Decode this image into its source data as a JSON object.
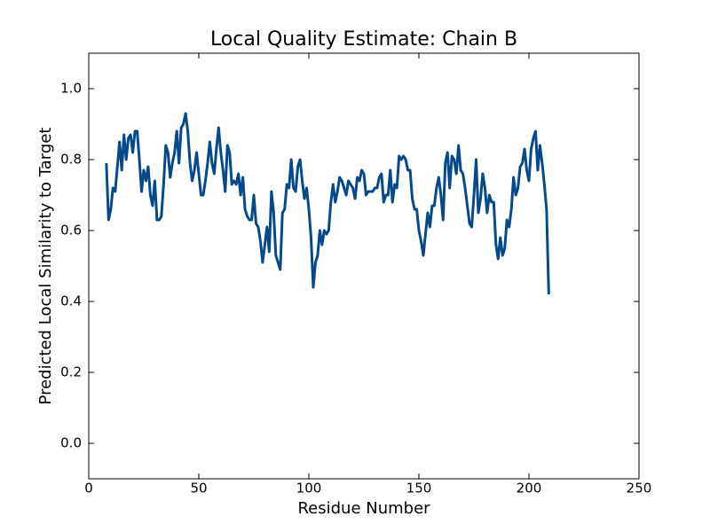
{
  "chart_data": {
    "type": "line",
    "title": "Local Quality Estimate: Chain B",
    "x_label": "Residue Number",
    "y_label": "Predicted Local Similarity to Target",
    "xlim": [
      0,
      250
    ],
    "ylim": [
      -0.1,
      1.1
    ],
    "xticks": [
      0,
      50,
      100,
      150,
      200,
      250
    ],
    "yticks": [
      {
        "value": 0,
        "label": "0.0"
      },
      0.2,
      0.4,
      0.6,
      0.8,
      {
        "value": 1,
        "label": "1.0"
      }
    ],
    "grid": false,
    "series": [
      {
        "color": "#044a8a",
        "x": [
          8,
          9,
          10,
          11,
          12,
          13,
          14,
          15,
          16,
          17,
          18,
          19,
          20,
          21,
          22,
          23,
          24,
          25,
          26,
          27,
          28,
          29,
          30,
          31,
          32,
          33,
          34,
          35,
          36,
          37,
          38,
          39,
          40,
          41,
          42,
          43,
          44,
          45,
          46,
          47,
          48,
          49,
          50,
          51,
          52,
          53,
          54,
          55,
          56,
          57,
          58,
          59,
          60,
          61,
          62,
          63,
          64,
          65,
          66,
          67,
          68,
          69,
          70,
          71,
          72,
          73,
          74,
          75,
          76,
          77,
          78,
          79,
          80,
          81,
          82,
          83,
          84,
          85,
          86,
          87,
          88,
          89,
          90,
          91,
          92,
          93,
          94,
          95,
          96,
          97,
          98,
          99,
          100,
          101,
          102,
          103,
          104,
          105,
          106,
          107,
          108,
          109,
          110,
          111,
          112,
          113,
          114,
          115,
          116,
          117,
          118,
          119,
          120,
          121,
          122,
          123,
          124,
          125,
          126,
          127,
          128,
          129,
          130,
          131,
          132,
          133,
          134,
          135,
          136,
          137,
          138,
          139,
          140,
          141,
          142,
          143,
          144,
          145,
          146,
          147,
          148,
          149,
          150,
          151,
          152,
          153,
          154,
          155,
          156,
          157,
          158,
          159,
          160,
          161,
          162,
          163,
          164,
          165,
          166,
          167,
          168,
          169,
          170,
          171,
          172,
          173,
          174,
          175,
          176,
          177,
          178,
          179,
          180,
          181,
          182,
          183,
          184,
          185,
          186,
          187,
          188,
          189,
          190,
          191,
          192,
          193,
          194,
          195,
          196,
          197,
          198,
          199,
          200,
          201,
          202,
          203,
          204,
          205,
          206,
          207,
          208,
          209
        ],
        "values": [
          0.79,
          0.63,
          0.66,
          0.72,
          0.71,
          0.78,
          0.85,
          0.77,
          0.87,
          0.8,
          0.86,
          0.87,
          0.82,
          0.88,
          0.88,
          0.8,
          0.71,
          0.77,
          0.74,
          0.78,
          0.7,
          0.67,
          0.74,
          0.63,
          0.63,
          0.64,
          0.73,
          0.84,
          0.82,
          0.75,
          0.79,
          0.82,
          0.88,
          0.79,
          0.89,
          0.9,
          0.93,
          0.88,
          0.79,
          0.74,
          0.77,
          0.82,
          0.76,
          0.7,
          0.7,
          0.74,
          0.79,
          0.85,
          0.79,
          0.76,
          0.83,
          0.89,
          0.82,
          0.77,
          0.71,
          0.84,
          0.82,
          0.73,
          0.74,
          0.73,
          0.76,
          0.7,
          0.75,
          0.66,
          0.64,
          0.63,
          0.63,
          0.7,
          0.62,
          0.61,
          0.57,
          0.51,
          0.56,
          0.61,
          0.54,
          0.71,
          0.65,
          0.53,
          0.51,
          0.49,
          0.65,
          0.66,
          0.73,
          0.72,
          0.8,
          0.72,
          0.71,
          0.78,
          0.8,
          0.74,
          0.69,
          0.72,
          0.66,
          0.58,
          0.44,
          0.51,
          0.53,
          0.6,
          0.56,
          0.6,
          0.59,
          0.6,
          0.68,
          0.73,
          0.68,
          0.71,
          0.75,
          0.74,
          0.72,
          0.7,
          0.74,
          0.73,
          0.72,
          0.69,
          0.75,
          0.74,
          0.77,
          0.76,
          0.7,
          0.71,
          0.71,
          0.71,
          0.72,
          0.72,
          0.75,
          0.76,
          0.68,
          0.7,
          0.7,
          0.77,
          0.68,
          0.73,
          0.72,
          0.81,
          0.8,
          0.81,
          0.8,
          0.77,
          0.77,
          0.69,
          0.66,
          0.66,
          0.6,
          0.57,
          0.53,
          0.59,
          0.65,
          0.61,
          0.67,
          0.67,
          0.72,
          0.75,
          0.7,
          0.63,
          0.79,
          0.82,
          0.72,
          0.81,
          0.8,
          0.76,
          0.84,
          0.77,
          0.76,
          0.72,
          0.67,
          0.62,
          0.61,
          0.7,
          0.8,
          0.65,
          0.69,
          0.76,
          0.72,
          0.65,
          0.7,
          0.68,
          0.68,
          0.56,
          0.52,
          0.58,
          0.53,
          0.55,
          0.63,
          0.61,
          0.66,
          0.75,
          0.7,
          0.72,
          0.78,
          0.79,
          0.83,
          0.77,
          0.74,
          0.83,
          0.86,
          0.88,
          0.77,
          0.84,
          0.79,
          0.73,
          0.66,
          0.42
        ]
      }
    ]
  }
}
